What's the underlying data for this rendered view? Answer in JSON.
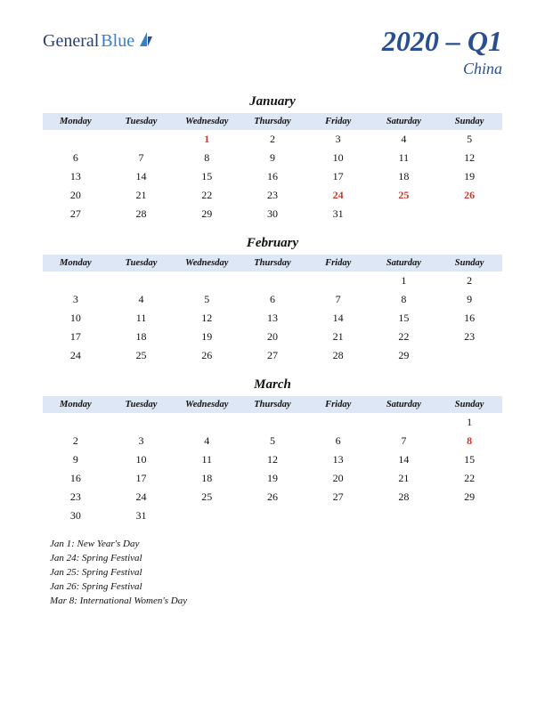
{
  "logo": {
    "text1": "General",
    "text2": "Blue"
  },
  "header": {
    "title": "2020 – Q1",
    "subtitle": "China"
  },
  "colors": {
    "header_bg": "#dde7f5",
    "holiday_text": "#c43a2e",
    "title_color": "#2a4f8f",
    "logo_color1": "#2a3f6b",
    "logo_color2": "#3a7fc4"
  },
  "weekdays": [
    "Monday",
    "Tuesday",
    "Wednesday",
    "Thursday",
    "Friday",
    "Saturday",
    "Sunday"
  ],
  "months": [
    {
      "name": "January",
      "weeks": [
        [
          "",
          "",
          "1",
          "2",
          "3",
          "4",
          "5"
        ],
        [
          "6",
          "7",
          "8",
          "9",
          "10",
          "11",
          "12"
        ],
        [
          "13",
          "14",
          "15",
          "16",
          "17",
          "18",
          "19"
        ],
        [
          "20",
          "21",
          "22",
          "23",
          "24",
          "25",
          "26"
        ],
        [
          "27",
          "28",
          "29",
          "30",
          "31",
          "",
          ""
        ]
      ],
      "holidays": [
        "1",
        "24",
        "25",
        "26"
      ]
    },
    {
      "name": "February",
      "weeks": [
        [
          "",
          "",
          "",
          "",
          "",
          "1",
          "2"
        ],
        [
          "3",
          "4",
          "5",
          "6",
          "7",
          "8",
          "9"
        ],
        [
          "10",
          "11",
          "12",
          "13",
          "14",
          "15",
          "16"
        ],
        [
          "17",
          "18",
          "19",
          "20",
          "21",
          "22",
          "23"
        ],
        [
          "24",
          "25",
          "26",
          "27",
          "28",
          "29",
          ""
        ]
      ],
      "holidays": []
    },
    {
      "name": "March",
      "weeks": [
        [
          "",
          "",
          "",
          "",
          "",
          "",
          "1"
        ],
        [
          "2",
          "3",
          "4",
          "5",
          "6",
          "7",
          "8"
        ],
        [
          "9",
          "10",
          "11",
          "12",
          "13",
          "14",
          "15"
        ],
        [
          "16",
          "17",
          "18",
          "19",
          "20",
          "21",
          "22"
        ],
        [
          "23",
          "24",
          "25",
          "26",
          "27",
          "28",
          "29"
        ],
        [
          "30",
          "31",
          "",
          "",
          "",
          "",
          ""
        ]
      ],
      "holidays": [
        "8"
      ]
    }
  ],
  "holidayList": [
    "Jan 1: New Year's Day",
    "Jan 24: Spring Festival",
    "Jan 25: Spring Festival",
    "Jan 26: Spring Festival",
    "Mar 8: International Women's Day"
  ]
}
